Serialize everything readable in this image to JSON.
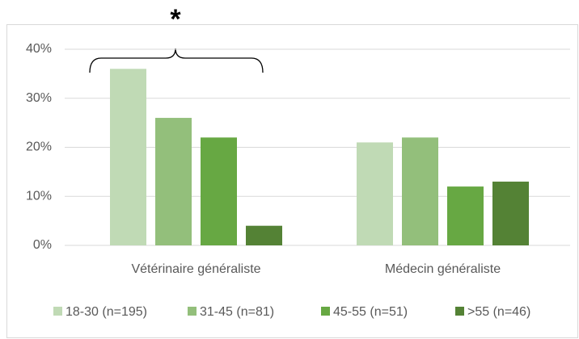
{
  "chart_data": {
    "type": "bar",
    "annotations": [
      "*"
    ],
    "categories": [
      "Vétérinaire généraliste",
      "Médecin généraliste"
    ],
    "series": [
      {
        "name": "18-30 (n=195)",
        "color": "#c0dab5",
        "values": [
          36,
          21
        ]
      },
      {
        "name": "31-45 (n=81)",
        "color": "#93bf7b",
        "values": [
          26,
          22
        ]
      },
      {
        "name": "45-55 (n=51)",
        "color": "#67a843",
        "values": [
          22,
          12
        ]
      },
      {
        "name": ">55 (n=46)",
        "color": "#548235",
        "values": [
          4,
          13
        ]
      }
    ],
    "ylim": [
      0,
      40
    ],
    "yticks": [
      {
        "value": 0,
        "label": "0%"
      },
      {
        "value": 10,
        "label": "10%"
      },
      {
        "value": 20,
        "label": "20%"
      },
      {
        "value": 30,
        "label": "30%"
      },
      {
        "value": 40,
        "label": "40%"
      }
    ],
    "grid": true,
    "legend": "bottom"
  }
}
